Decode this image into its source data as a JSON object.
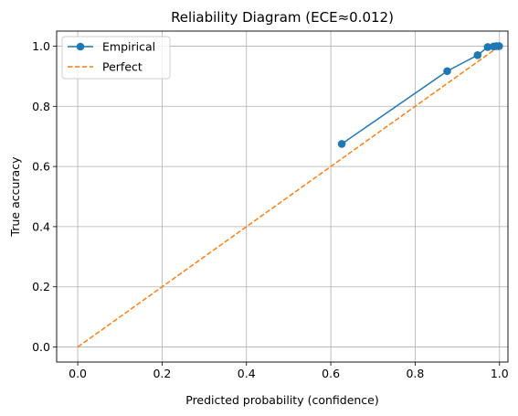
{
  "chart_data": {
    "type": "line",
    "title": "Reliability Diagram (ECE≈0.012)",
    "xlabel": "Predicted probability (confidence)",
    "ylabel": "True accuracy",
    "xlim": [
      -0.05,
      1.02
    ],
    "ylim": [
      -0.05,
      1.05
    ],
    "xticks": [
      0.0,
      0.2,
      0.4,
      0.6,
      0.8,
      1.0
    ],
    "xtick_labels": [
      "0.0",
      "0.2",
      "0.4",
      "0.6",
      "0.8",
      "1.0"
    ],
    "yticks": [
      0.0,
      0.2,
      0.4,
      0.6,
      0.8,
      1.0
    ],
    "ytick_labels": [
      "0.0",
      "0.2",
      "0.4",
      "0.6",
      "0.8",
      "1.0"
    ],
    "grid": true,
    "legend": "top-left",
    "series": [
      {
        "name": "Empirical",
        "color": "#1f77b4",
        "style": "solid",
        "marker": "circle",
        "x": [
          0.626,
          0.876,
          0.948,
          0.972,
          0.986,
          0.993,
          0.999
        ],
        "y": [
          0.675,
          0.917,
          0.97,
          0.997,
          0.999,
          1.0,
          1.0
        ]
      },
      {
        "name": "Perfect",
        "color": "#ff7f0e",
        "style": "dashed",
        "marker": "none",
        "x": [
          0.0,
          1.0
        ],
        "y": [
          0.0,
          1.0
        ]
      }
    ]
  }
}
